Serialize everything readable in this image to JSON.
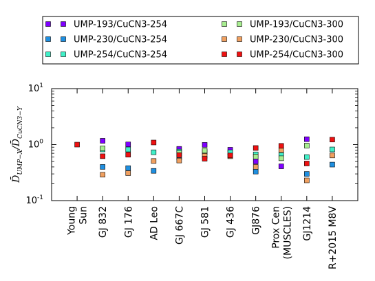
{
  "chart_data": {
    "type": "scatter",
    "title": "",
    "xlabel": "",
    "ylabel": "D̄UMP−X/D̄CuCN3−Y",
    "yscale": "log",
    "ylim": [
      0.1,
      10
    ],
    "yticks": [
      {
        "value": 0.1,
        "base": "10",
        "exp": "-1"
      },
      {
        "value": 1,
        "base": "10",
        "exp": "0"
      },
      {
        "value": 10,
        "base": "10",
        "exp": "1"
      }
    ],
    "grid": false,
    "legend_position": "top",
    "categories": [
      [
        "Young",
        "Sun"
      ],
      [
        "GJ 832"
      ],
      [
        "GJ 176"
      ],
      [
        "AD Leo"
      ],
      [
        "GJ 667C"
      ],
      [
        "GJ 581"
      ],
      [
        "GJ 436"
      ],
      [
        "GJ876"
      ],
      [
        "Prox Cen",
        "(MUSCLES)"
      ],
      [
        "GJ1214"
      ],
      [
        "R+2015 M8V"
      ]
    ],
    "series": [
      {
        "name": "UMP-193/CuCN3-254",
        "color": "#7f00ff",
        "values": [
          null,
          1.17,
          1.01,
          null,
          0.84,
          0.99,
          0.81,
          0.5,
          0.41,
          1.25,
          null
        ]
      },
      {
        "name": "UMP-230/CuCN3-254",
        "color": "#1f8fe0",
        "values": [
          null,
          0.4,
          0.38,
          0.34,
          0.59,
          null,
          null,
          0.33,
          null,
          0.3,
          0.44
        ]
      },
      {
        "name": "UMP-254/CuCN3-254",
        "color": "#40f0c8",
        "values": [
          null,
          0.82,
          0.82,
          0.73,
          0.75,
          0.74,
          0.73,
          0.67,
          0.65,
          0.6,
          0.82
        ]
      },
      {
        "name": "UMP-193/CuCN3-300",
        "color": "#a8ee90",
        "values": [
          null,
          0.86,
          null,
          null,
          0.7,
          0.78,
          null,
          0.61,
          0.57,
          0.96,
          null
        ]
      },
      {
        "name": "UMP-230/CuCN3-300",
        "color": "#f0a060",
        "values": [
          null,
          0.29,
          0.31,
          0.51,
          0.52,
          0.63,
          0.62,
          0.4,
          0.8,
          0.23,
          0.64
        ]
      },
      {
        "name": "UMP-254/CuCN3-300",
        "color": "#ee1111",
        "values": [
          1.0,
          0.62,
          0.66,
          1.09,
          0.65,
          0.56,
          0.64,
          0.87,
          0.95,
          0.46,
          1.23
        ]
      }
    ]
  }
}
